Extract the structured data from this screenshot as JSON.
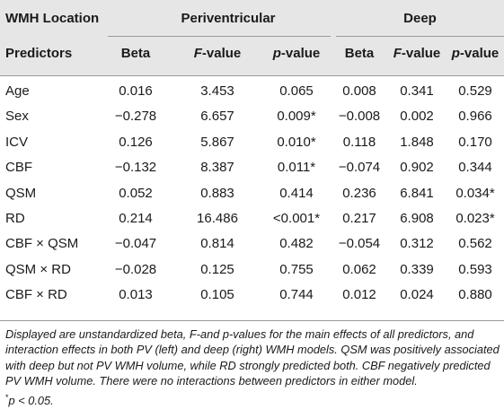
{
  "header": {
    "group_label": "WMH Location",
    "group_periventricular": "Periventricular",
    "group_deep": "Deep",
    "col_predictors": "Predictors",
    "pv_beta": "Beta",
    "pv_f_italic": "F",
    "pv_f_rest": "-value",
    "pv_p_italic": "p",
    "pv_p_rest": "-value",
    "deep_beta": "Beta",
    "deep_f_italic": "F",
    "deep_f_rest": "-value",
    "deep_p_italic": "p",
    "deep_p_rest": "-value"
  },
  "rows": [
    {
      "predictor": "Age",
      "pv_beta": "0.016",
      "pv_f": "3.453",
      "pv_p": "0.065",
      "deep_beta": "0.008",
      "deep_f": "0.341",
      "deep_p": "0.529"
    },
    {
      "predictor": "Sex",
      "pv_beta": "−0.278",
      "pv_f": "6.657",
      "pv_p": "0.009*",
      "deep_beta": "−0.008",
      "deep_f": "0.002",
      "deep_p": "0.966"
    },
    {
      "predictor": "ICV",
      "pv_beta": "0.126",
      "pv_f": "5.867",
      "pv_p": "0.010*",
      "deep_beta": "0.118",
      "deep_f": "1.848",
      "deep_p": "0.170"
    },
    {
      "predictor": "CBF",
      "pv_beta": "−0.132",
      "pv_f": "8.387",
      "pv_p": "0.011*",
      "deep_beta": "−0.074",
      "deep_f": "0.902",
      "deep_p": "0.344"
    },
    {
      "predictor": "QSM",
      "pv_beta": "0.052",
      "pv_f": "0.883",
      "pv_p": "0.414",
      "deep_beta": "0.236",
      "deep_f": "6.841",
      "deep_p": "0.034*"
    },
    {
      "predictor": "RD",
      "pv_beta": "0.214",
      "pv_f": "16.486",
      "pv_p": "<0.001*",
      "deep_beta": "0.217",
      "deep_f": "6.908",
      "deep_p": "0.023*"
    },
    {
      "predictor": "CBF × QSM",
      "pv_beta": "−0.047",
      "pv_f": "0.814",
      "pv_p": "0.482",
      "deep_beta": "−0.054",
      "deep_f": "0.312",
      "deep_p": "0.562"
    },
    {
      "predictor": "QSM × RD",
      "pv_beta": "−0.028",
      "pv_f": "0.125",
      "pv_p": "0.755",
      "deep_beta": "0.062",
      "deep_f": "0.339",
      "deep_p": "0.593"
    },
    {
      "predictor": "CBF × RD",
      "pv_beta": "0.013",
      "pv_f": "0.105",
      "pv_p": "0.744",
      "deep_beta": "0.012",
      "deep_f": "0.024",
      "deep_p": "0.880"
    }
  ],
  "notes": {
    "caption": "Displayed are unstandardized beta, F-and p-values for the main effects of all predictors, and interaction effects in both PV (left) and deep (right) WMH models. QSM was positively associated with deep but not PV WMH volume, while RD strongly predicted both. CBF negatively predicted PV WMH volume. There were no interactions between predictors in either model.",
    "footnote_mark": "*",
    "footnote_text": "p < 0.05."
  },
  "colors": {
    "header_background": "#e6e6e6",
    "rule": "#9a9a9a",
    "text": "#1a1a1a"
  }
}
